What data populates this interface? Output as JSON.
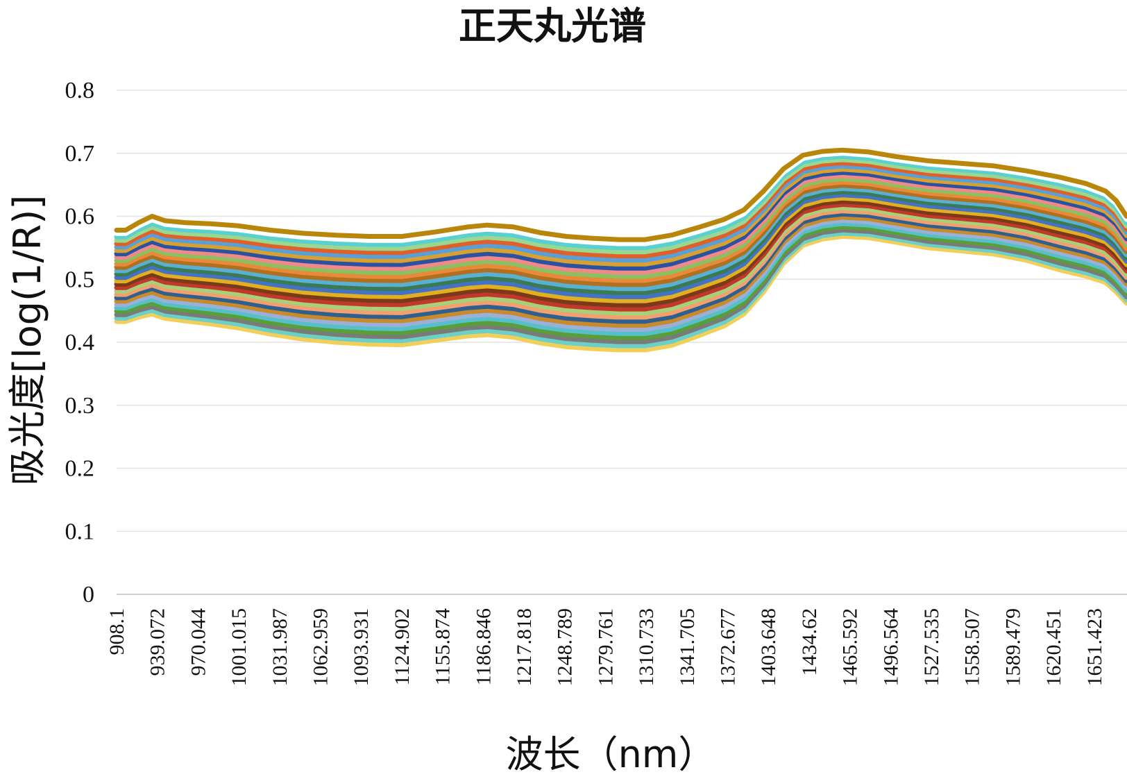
{
  "chart_data": {
    "type": "line",
    "title": "正天丸光谱",
    "xlabel": "波长（nm）",
    "ylabel": "吸光度[log(1/R)]",
    "ylim": [
      0,
      0.8
    ],
    "y_ticks": [
      "0",
      "0.1",
      "0.2",
      "0.3",
      "0.4",
      "0.5",
      "0.6",
      "0.7",
      "0.8"
    ],
    "x_range": [
      908.1,
      1676.3
    ],
    "x_ticks": [
      "908.1",
      "939.072",
      "970.044",
      "1001.015",
      "1031.987",
      "1062.959",
      "1093.931",
      "1124.902",
      "1155.874",
      "1186.846",
      "1217.818",
      "1248.789",
      "1279.761",
      "1310.733",
      "1341.705",
      "1372.677",
      "1403.648",
      "1434.62",
      "1465.592",
      "1496.564",
      "1527.535",
      "1558.507",
      "1589.479",
      "1620.451",
      "1651.423"
    ],
    "grid": true,
    "legend": "none",
    "series_count": 28,
    "x": [
      908.1,
      915,
      925,
      935,
      945,
      960,
      980,
      1000,
      1025,
      1050,
      1075,
      1100,
      1125,
      1150,
      1175,
      1190,
      1210,
      1230,
      1250,
      1270,
      1290,
      1310,
      1330,
      1350,
      1370,
      1385,
      1400,
      1415,
      1430,
      1445,
      1460,
      1480,
      1500,
      1525,
      1550,
      1575,
      1600,
      1625,
      1645,
      1660,
      1668,
      1676
    ],
    "bottom_curve": [
      0.433,
      0.433,
      0.44,
      0.445,
      0.438,
      0.434,
      0.429,
      0.423,
      0.413,
      0.405,
      0.4,
      0.397,
      0.396,
      0.403,
      0.41,
      0.412,
      0.408,
      0.399,
      0.393,
      0.39,
      0.388,
      0.388,
      0.395,
      0.41,
      0.426,
      0.445,
      0.48,
      0.525,
      0.554,
      0.564,
      0.568,
      0.566,
      0.559,
      0.55,
      0.545,
      0.54,
      0.53,
      0.515,
      0.505,
      0.495,
      0.48,
      0.462
    ],
    "top_curve": [
      0.578,
      0.578,
      0.59,
      0.6,
      0.593,
      0.59,
      0.588,
      0.585,
      0.578,
      0.573,
      0.57,
      0.568,
      0.568,
      0.575,
      0.583,
      0.586,
      0.583,
      0.574,
      0.568,
      0.565,
      0.563,
      0.563,
      0.57,
      0.582,
      0.595,
      0.61,
      0.64,
      0.675,
      0.697,
      0.703,
      0.705,
      0.702,
      0.695,
      0.688,
      0.684,
      0.68,
      0.672,
      0.662,
      0.652,
      0.64,
      0.625,
      0.6
    ],
    "colors": [
      "#f2cf5a",
      "#6bd0c8",
      "#7a7a7a",
      "#5a9e3a",
      "#55c0c8",
      "#9ab0d8",
      "#c88a2a",
      "#2e5f8f",
      "#f2a070",
      "#a8d078",
      "#c0392b",
      "#7a3a1a",
      "#e0b020",
      "#4472c4",
      "#3a7a55",
      "#5ab0d0",
      "#b07020",
      "#e88a3a",
      "#8ac060",
      "#f08a8a",
      "#2a52a0",
      "#d8a030",
      "#5aa0d8",
      "#e0602a",
      "#9ad890",
      "#5ad0d0",
      "#ffffff",
      "#b8860b"
    ]
  }
}
